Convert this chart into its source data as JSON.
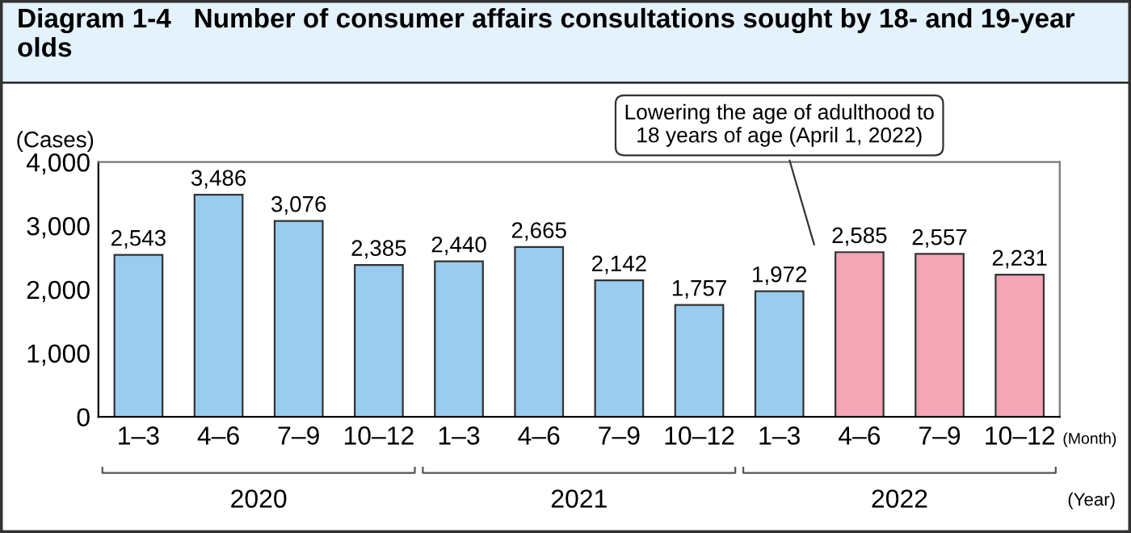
{
  "chart_data": {
    "type": "bar",
    "title": "Diagram 1-4   Number of consumer affairs consultations sought by 18- and 19-year olds",
    "ylabel": "(Cases)",
    "xlabel": "(Month)",
    "categories": [
      "1–3",
      "4–6",
      "7–9",
      "10–12",
      "1–3",
      "4–6",
      "7–9",
      "10–12",
      "1–3",
      "4–6",
      "7–9",
      "10–12"
    ],
    "values": [
      2543,
      3486,
      3076,
      2385,
      2440,
      2665,
      2142,
      1757,
      1972,
      2585,
      2557,
      2231
    ],
    "value_labels": [
      "2,543",
      "3,486",
      "3,076",
      "2,385",
      "2,440",
      "2,665",
      "2,142",
      "1,757",
      "1,972",
      "2,585",
      "2,557",
      "2,231"
    ],
    "colors": [
      "#99ccee",
      "#99ccee",
      "#99ccee",
      "#99ccee",
      "#99ccee",
      "#99ccee",
      "#99ccee",
      "#99ccee",
      "#99ccee",
      "#f4a6b6",
      "#f4a6b6",
      "#f4a6b6"
    ],
    "ylim": [
      0,
      4000
    ],
    "yticks": [
      {
        "value": 0,
        "label": "0"
      },
      {
        "value": 1000,
        "label": "1,000"
      },
      {
        "value": 2000,
        "label": "2,000"
      },
      {
        "value": 3000,
        "label": "3,000"
      },
      {
        "value": 4000,
        "label": "4,000"
      }
    ],
    "grid": false,
    "legend": false,
    "annotations": [
      "Lowering the age of adulthood to\n18 years of age (April 1, 2022)",
      "2020",
      "2021",
      "2022",
      "(Year)"
    ]
  }
}
